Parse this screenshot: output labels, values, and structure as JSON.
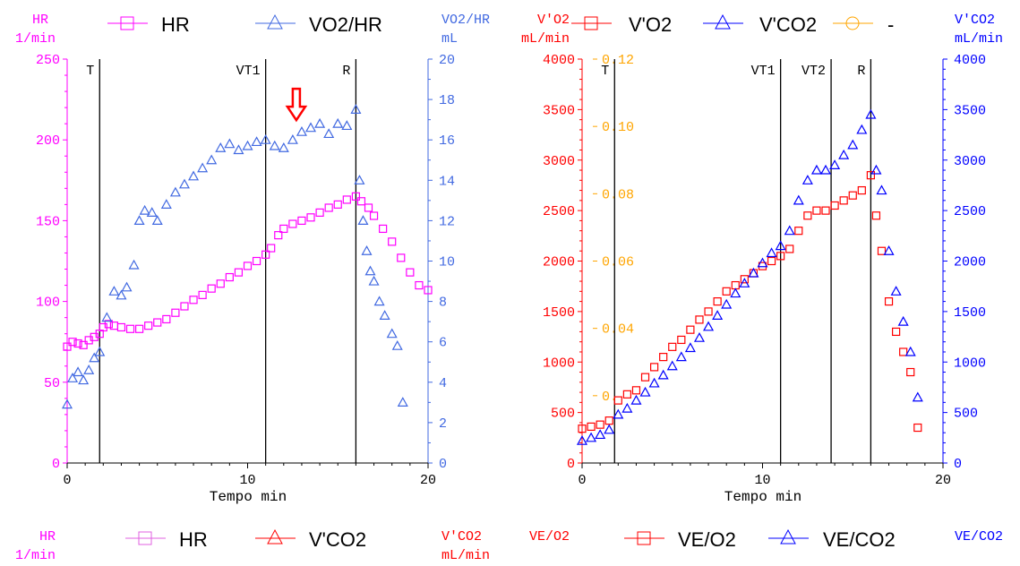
{
  "colors": {
    "magenta": "#ff00ff",
    "steelblue": "#4169e1",
    "red": "#ff0000",
    "blue": "#0000ff",
    "orange": "#ffa500",
    "pink": "#e060e0",
    "black": "#000000"
  },
  "chart_data": [
    {
      "type": "scatter",
      "title": "",
      "xlabel": "Tempo  min",
      "xlim": [
        0,
        20
      ],
      "xticks": [
        "0",
        "10",
        "20"
      ],
      "left_axis": {
        "label_line1": "HR",
        "label_line2": "1/min",
        "ylim": [
          0,
          250
        ],
        "ticks": [
          "0",
          "50",
          "100",
          "150",
          "200",
          "250"
        ],
        "color": "#ff00ff"
      },
      "right_axis": {
        "label_line1": "VO2/HR",
        "label_line2": "mL",
        "ylim": [
          0,
          20
        ],
        "ticks": [
          "0",
          "2",
          "4",
          "6",
          "8",
          "10",
          "12",
          "14",
          "16",
          "18",
          "20"
        ],
        "color": "#4169e1"
      },
      "legend": [
        {
          "name": "HR",
          "marker": "square",
          "color": "#ff00ff"
        },
        {
          "name": "VO2/HR",
          "marker": "triangle",
          "color": "#4169e1"
        }
      ],
      "vlines": [
        {
          "x": 1.8,
          "label": "T"
        },
        {
          "x": 11.0,
          "label": "VT1"
        },
        {
          "x": 16.0,
          "label": "R"
        }
      ],
      "annotation": {
        "type": "down-arrow",
        "x": 12.7,
        "y": 17.2,
        "color": "#ff0000"
      },
      "series": [
        {
          "name": "HR",
          "axis": "left",
          "marker": "square",
          "color": "#ff00ff",
          "x": [
            0,
            0.3,
            0.6,
            0.9,
            1.2,
            1.5,
            1.8,
            2.0,
            2.3,
            2.6,
            3.0,
            3.5,
            4.0,
            4.5,
            5.0,
            5.5,
            6.0,
            6.5,
            7.0,
            7.5,
            8.0,
            8.5,
            9.0,
            9.5,
            10.0,
            10.5,
            11.0,
            11.3,
            11.7,
            12.0,
            12.5,
            13.0,
            13.5,
            14.0,
            14.5,
            15.0,
            15.5,
            16.0,
            16.3,
            16.7,
            17.0,
            17.5,
            18.0,
            18.5,
            19.0,
            19.5,
            20.0
          ],
          "y": [
            72,
            75,
            74,
            73,
            76,
            78,
            80,
            84,
            86,
            85,
            84,
            83,
            83,
            85,
            87,
            89,
            93,
            97,
            101,
            104,
            108,
            111,
            115,
            118,
            122,
            125,
            129,
            133,
            141,
            145,
            148,
            150,
            152,
            155,
            158,
            160,
            163,
            165,
            162,
            158,
            153,
            145,
            137,
            127,
            118,
            110,
            107
          ]
        },
        {
          "name": "VO2/HR",
          "axis": "right",
          "marker": "triangle",
          "color": "#4169e1",
          "x": [
            0,
            0.3,
            0.6,
            0.9,
            1.2,
            1.5,
            1.8,
            2.2,
            2.6,
            3.0,
            3.3,
            3.7,
            4.0,
            4.3,
            4.7,
            5.0,
            5.5,
            6.0,
            6.5,
            7.0,
            7.5,
            8.0,
            8.5,
            9.0,
            9.5,
            10.0,
            10.5,
            11.0,
            11.5,
            12.0,
            12.5,
            13.0,
            13.5,
            14.0,
            14.5,
            15.0,
            15.5,
            16.0,
            16.2,
            16.4,
            16.6,
            16.8,
            17.0,
            17.3,
            17.6,
            18.0,
            18.3,
            18.6
          ],
          "y": [
            2.9,
            4.2,
            4.5,
            4.1,
            4.6,
            5.2,
            5.5,
            7.2,
            8.5,
            8.3,
            8.7,
            9.8,
            12.0,
            12.5,
            12.4,
            12.0,
            12.8,
            13.4,
            13.8,
            14.2,
            14.6,
            15.0,
            15.6,
            15.8,
            15.5,
            15.7,
            15.9,
            16.0,
            15.7,
            15.6,
            16.0,
            16.4,
            16.6,
            16.8,
            16.3,
            16.8,
            16.7,
            17.5,
            14.0,
            12.0,
            10.5,
            9.5,
            9.0,
            8.0,
            7.3,
            6.4,
            5.8,
            3.0
          ]
        }
      ]
    },
    {
      "type": "scatter",
      "title": "",
      "xlabel": "Tempo  min",
      "xlim": [
        0,
        20
      ],
      "xticks": [
        "0",
        "10",
        "20"
      ],
      "left_axis": {
        "label_line1": "V'O2",
        "label_line2": "mL/min",
        "ylim": [
          0,
          4000
        ],
        "ticks": [
          "0",
          "500",
          "1000",
          "1500",
          "2000",
          "2500",
          "3000",
          "3500",
          "4000"
        ],
        "color": "#ff0000"
      },
      "mid_axis": {
        "ylim": [
          0,
          0.12
        ],
        "ticks": [
          "0.",
          "0.04",
          "0.06",
          "0.08",
          "0.10",
          "0.12"
        ],
        "tick_values": [
          0.02,
          0.04,
          0.06,
          0.08,
          0.1,
          0.12
        ],
        "color": "#ffa500"
      },
      "right_axis": {
        "label_line1": "V'CO2",
        "label_line2": "mL/min",
        "ylim": [
          0,
          4000
        ],
        "ticks": [
          "0",
          "500",
          "1000",
          "1500",
          "2000",
          "2500",
          "3000",
          "3500",
          "4000"
        ],
        "color": "#0000ff"
      },
      "legend": [
        {
          "name": "V'O2",
          "marker": "square",
          "color": "#ff0000"
        },
        {
          "name": "V'CO2",
          "marker": "triangle",
          "color": "#0000ff"
        },
        {
          "name": "-",
          "marker": "circle",
          "color": "#ffa500"
        }
      ],
      "vlines": [
        {
          "x": 1.8,
          "label": "T"
        },
        {
          "x": 11.0,
          "label": "VT1"
        },
        {
          "x": 13.8,
          "label": "VT2"
        },
        {
          "x": 16.0,
          "label": "R"
        }
      ],
      "series": [
        {
          "name": "V'O2",
          "axis": "left",
          "marker": "square",
          "color": "#ff0000",
          "x": [
            0,
            0.5,
            1.0,
            1.5,
            2.0,
            2.5,
            3.0,
            3.5,
            4.0,
            4.5,
            5.0,
            5.5,
            6.0,
            6.5,
            7.0,
            7.5,
            8.0,
            8.5,
            9.0,
            9.5,
            10.0,
            10.5,
            11.0,
            11.5,
            12.0,
            12.5,
            13.0,
            13.5,
            14.0,
            14.5,
            15.0,
            15.5,
            16.0,
            16.3,
            16.6,
            17.0,
            17.4,
            17.8,
            18.2,
            18.6
          ],
          "y": [
            340,
            360,
            380,
            420,
            620,
            680,
            720,
            850,
            950,
            1050,
            1150,
            1220,
            1320,
            1420,
            1500,
            1600,
            1700,
            1760,
            1820,
            1880,
            1950,
            2000,
            2050,
            2120,
            2300,
            2450,
            2500,
            2500,
            2550,
            2600,
            2650,
            2700,
            2850,
            2450,
            2100,
            1600,
            1300,
            1100,
            900,
            350
          ]
        },
        {
          "name": "V'CO2",
          "axis": "right",
          "marker": "triangle",
          "color": "#0000ff",
          "x": [
            0,
            0.5,
            1.0,
            1.5,
            2.0,
            2.5,
            3.0,
            3.5,
            4.0,
            4.5,
            5.0,
            5.5,
            6.0,
            6.5,
            7.0,
            7.5,
            8.0,
            8.5,
            9.0,
            9.5,
            10.0,
            10.5,
            11.0,
            11.5,
            12.0,
            12.5,
            13.0,
            13.5,
            14.0,
            14.5,
            15.0,
            15.5,
            16.0,
            16.3,
            16.6,
            17.0,
            17.4,
            17.8,
            18.2,
            18.6
          ],
          "y": [
            220,
            250,
            280,
            330,
            480,
            540,
            620,
            700,
            790,
            870,
            960,
            1050,
            1140,
            1240,
            1350,
            1460,
            1570,
            1680,
            1780,
            1880,
            1980,
            2080,
            2150,
            2300,
            2600,
            2800,
            2900,
            2900,
            2950,
            3050,
            3150,
            3300,
            3450,
            2900,
            2700,
            2100,
            1700,
            1400,
            1100,
            650
          ]
        }
      ]
    }
  ],
  "bottom_legend": {
    "left_axis_label_line1": "HR",
    "left_axis_label_line2": "1/min",
    "left_items": [
      {
        "name": "HR",
        "marker": "square",
        "color": "#e060e0"
      },
      {
        "name": "V'CO2",
        "marker": "triangle",
        "color": "#ff0000"
      }
    ],
    "right_axis_label_line1": "V'CO2",
    "right_axis_label_line2": "mL/min",
    "center_axis_label": "VE/O2",
    "right_items": [
      {
        "name": "VE/O2",
        "marker": "square",
        "color": "#ff0000"
      },
      {
        "name": "VE/CO2",
        "marker": "triangle",
        "color": "#0000ff"
      }
    ],
    "far_right_axis_label": "VE/CO2"
  }
}
